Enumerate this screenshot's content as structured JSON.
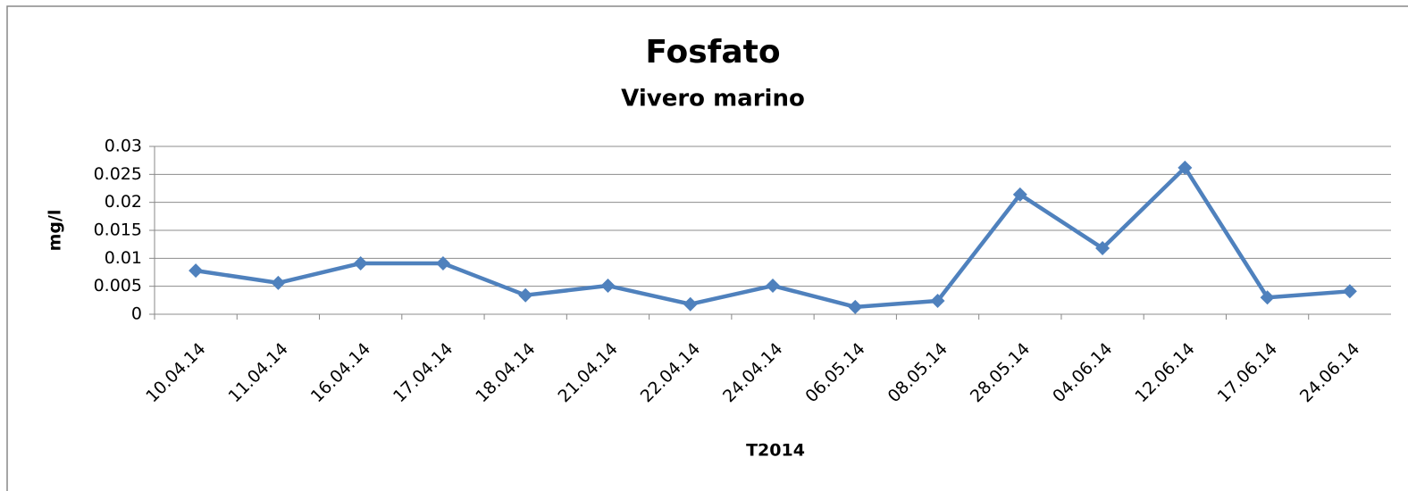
{
  "chart_data": {
    "type": "line",
    "title": "Fosfato",
    "subtitle": "Vivero marino",
    "x_label": "T2014",
    "y_label": "mg/l",
    "categories": [
      "10.04.14",
      "11.04.14",
      "16.04.14",
      "17.04.14",
      "18.04.14",
      "21.04.14",
      "22.04.14",
      "24.04.14",
      "06.05.14",
      "08.05.14",
      "28.05.14",
      "04.06.14",
      "12.06.14",
      "17.06.14",
      "24.06.14"
    ],
    "series": [
      {
        "name": "Fosfato",
        "color": "#4f81bd",
        "values": [
          0.0078,
          0.0056,
          0.0091,
          0.0091,
          0.0034,
          0.0051,
          0.0018,
          0.0051,
          0.0013,
          0.0024,
          0.0214,
          0.0118,
          0.0262,
          0.003,
          0.0041
        ]
      }
    ],
    "ylim": [
      0,
      0.03
    ],
    "yticks": [
      0,
      0.005,
      0.01,
      0.015,
      0.02,
      0.025,
      0.03
    ],
    "grid": true,
    "legend": false
  }
}
